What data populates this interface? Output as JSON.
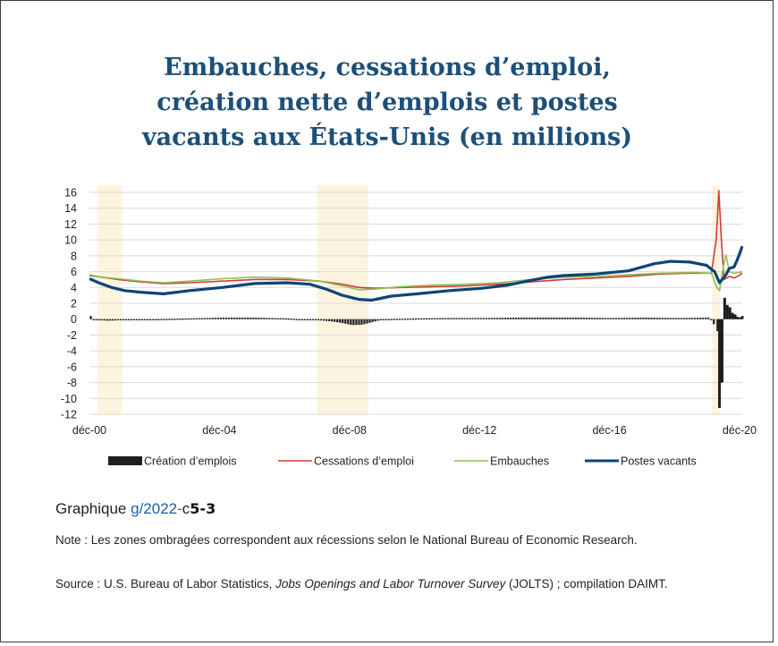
{
  "title_lines": [
    "Embauches, cessations d’emploi,",
    "création nette d’emplois et postes",
    "vacants aux États-Unis (en millions)"
  ],
  "caption": {
    "prefix": "Graphique ",
    "link": "g/2022-",
    "mid": "c",
    "strong": "5-3"
  },
  "note": "Note : Les zones ombragées correspondent aux récessions selon le National Bureau of Economic Research.",
  "source": {
    "prefix": "Source : U.S. Bureau of Labor Statistics, ",
    "italic": "Jobs Openings and Labor Turnover Survey",
    "suffix": " (JOLTS) ; compilation DAIMT."
  },
  "colors": {
    "title": "#1d4f79",
    "creation": "#1e1e1e",
    "cessations": "#d03a3a",
    "embauches": "#8cc152",
    "postes": "#0d4477",
    "recession": "#fdf4df",
    "grid": "#d9d9d9"
  },
  "chart_data": {
    "type": "line",
    "title": "",
    "xlabel": "",
    "ylabel": "",
    "ylim": [
      -12,
      16
    ],
    "yticks": [
      "16",
      "14",
      "12",
      "10",
      "8",
      "6",
      "4",
      "2",
      "0",
      "-2",
      "-4",
      "-6",
      "-8",
      "-10",
      "-12"
    ],
    "xticks": [
      {
        "label": "déc-00",
        "year": 2000.917
      },
      {
        "label": "déc-04",
        "year": 2004.917
      },
      {
        "label": "déc-08",
        "year": 2008.917
      },
      {
        "label": "déc-12",
        "year": 2012.917
      },
      {
        "label": "déc-16",
        "year": 2016.917
      },
      {
        "label": "déc-20",
        "year": 2020.917
      }
    ],
    "xlim": [
      2000.917,
      2021.0
    ],
    "grid": true,
    "legend": "bottom",
    "recessions": [
      [
        2001.17,
        2001.92
      ],
      [
        2007.92,
        2009.5
      ],
      [
        2020.08,
        2020.33
      ]
    ],
    "series": [
      {
        "name": "Création d’emplois",
        "kind": "bar",
        "color": "#1e1e1e",
        "points": [
          [
            2001.0,
            -0.1
          ],
          [
            2001.5,
            -0.2
          ],
          [
            2002.0,
            -0.1
          ],
          [
            2003.0,
            0.0
          ],
          [
            2004.0,
            0.1
          ],
          [
            2005.0,
            0.2
          ],
          [
            2006.0,
            0.2
          ],
          [
            2007.0,
            0.1
          ],
          [
            2008.0,
            -0.15
          ],
          [
            2008.4,
            -0.3
          ],
          [
            2008.7,
            -0.5
          ],
          [
            2009.0,
            -0.75
          ],
          [
            2009.3,
            -0.7
          ],
          [
            2009.6,
            -0.4
          ],
          [
            2010.0,
            0.0
          ],
          [
            2011.0,
            0.1
          ],
          [
            2012.0,
            0.15
          ],
          [
            2013.0,
            0.15
          ],
          [
            2014.0,
            0.2
          ],
          [
            2015.0,
            0.2
          ],
          [
            2016.0,
            0.2
          ],
          [
            2017.0,
            0.15
          ],
          [
            2018.0,
            0.2
          ],
          [
            2019.0,
            0.15
          ],
          [
            2020.0,
            0.2
          ],
          [
            2020.25,
            -1.5
          ],
          [
            2020.3,
            -11.2
          ],
          [
            2020.38,
            -8.0
          ],
          [
            2020.46,
            2.7
          ],
          [
            2020.54,
            1.8
          ],
          [
            2020.62,
            1.5
          ],
          [
            2020.7,
            0.8
          ],
          [
            2020.78,
            0.6
          ],
          [
            2020.86,
            0.3
          ],
          [
            2020.94,
            0.2
          ],
          [
            2021.0,
            0.4
          ]
        ]
      },
      {
        "name": "Cessations d’emploi",
        "kind": "line",
        "color": "#d03a3a",
        "points": [
          [
            2000.92,
            5.5
          ],
          [
            2001.3,
            5.3
          ],
          [
            2001.8,
            5.0
          ],
          [
            2002.5,
            4.7
          ],
          [
            2003.2,
            4.5
          ],
          [
            2004.0,
            4.6
          ],
          [
            2005.0,
            4.8
          ],
          [
            2006.0,
            5.0
          ],
          [
            2007.0,
            5.0
          ],
          [
            2008.0,
            4.8
          ],
          [
            2008.7,
            4.4
          ],
          [
            2009.2,
            4.0
          ],
          [
            2009.7,
            3.9
          ],
          [
            2010.5,
            4.0
          ],
          [
            2011.5,
            4.1
          ],
          [
            2012.5,
            4.2
          ],
          [
            2013.5,
            4.4
          ],
          [
            2014.5,
            4.7
          ],
          [
            2015.5,
            5.0
          ],
          [
            2016.5,
            5.2
          ],
          [
            2017.5,
            5.4
          ],
          [
            2018.5,
            5.7
          ],
          [
            2019.5,
            5.8
          ],
          [
            2020.05,
            5.8
          ],
          [
            2020.2,
            10.0
          ],
          [
            2020.28,
            16.2
          ],
          [
            2020.36,
            10.0
          ],
          [
            2020.44,
            5.0
          ],
          [
            2020.6,
            5.4
          ],
          [
            2020.75,
            5.2
          ],
          [
            2020.9,
            5.5
          ],
          [
            2021.0,
            5.8
          ]
        ]
      },
      {
        "name": "Embauches",
        "kind": "line",
        "color": "#8cc152",
        "points": [
          [
            2000.92,
            5.6
          ],
          [
            2001.3,
            5.3
          ],
          [
            2001.8,
            5.1
          ],
          [
            2002.5,
            4.8
          ],
          [
            2003.2,
            4.6
          ],
          [
            2004.0,
            4.8
          ],
          [
            2005.0,
            5.1
          ],
          [
            2006.0,
            5.3
          ],
          [
            2007.0,
            5.2
          ],
          [
            2008.0,
            4.8
          ],
          [
            2008.7,
            4.2
          ],
          [
            2009.2,
            3.7
          ],
          [
            2009.7,
            3.8
          ],
          [
            2010.5,
            4.1
          ],
          [
            2011.5,
            4.3
          ],
          [
            2012.5,
            4.4
          ],
          [
            2013.5,
            4.6
          ],
          [
            2014.5,
            5.0
          ],
          [
            2015.5,
            5.3
          ],
          [
            2016.5,
            5.4
          ],
          [
            2017.5,
            5.6
          ],
          [
            2018.5,
            5.8
          ],
          [
            2019.5,
            5.9
          ],
          [
            2020.05,
            5.8
          ],
          [
            2020.22,
            4.0
          ],
          [
            2020.3,
            3.6
          ],
          [
            2020.42,
            6.7
          ],
          [
            2020.5,
            8.1
          ],
          [
            2020.6,
            6.0
          ],
          [
            2020.75,
            5.8
          ],
          [
            2020.9,
            5.9
          ],
          [
            2021.0,
            6.0
          ]
        ]
      },
      {
        "name": "Postes vacants",
        "kind": "line",
        "color": "#0d4477",
        "points": [
          [
            2000.92,
            5.1
          ],
          [
            2001.2,
            4.6
          ],
          [
            2001.6,
            4.0
          ],
          [
            2002.0,
            3.6
          ],
          [
            2002.5,
            3.4
          ],
          [
            2003.2,
            3.2
          ],
          [
            2004.0,
            3.6
          ],
          [
            2005.0,
            4.0
          ],
          [
            2006.0,
            4.5
          ],
          [
            2007.0,
            4.6
          ],
          [
            2007.7,
            4.4
          ],
          [
            2008.2,
            3.8
          ],
          [
            2008.7,
            3.0
          ],
          [
            2009.2,
            2.5
          ],
          [
            2009.6,
            2.4
          ],
          [
            2010.2,
            2.9
          ],
          [
            2011.0,
            3.2
          ],
          [
            2012.0,
            3.6
          ],
          [
            2013.0,
            3.9
          ],
          [
            2013.8,
            4.3
          ],
          [
            2014.5,
            4.9
          ],
          [
            2015.0,
            5.3
          ],
          [
            2015.5,
            5.5
          ],
          [
            2016.5,
            5.7
          ],
          [
            2017.5,
            6.1
          ],
          [
            2018.3,
            7.0
          ],
          [
            2018.8,
            7.3
          ],
          [
            2019.4,
            7.2
          ],
          [
            2019.9,
            6.8
          ],
          [
            2020.15,
            6.0
          ],
          [
            2020.3,
            4.6
          ],
          [
            2020.5,
            5.6
          ],
          [
            2020.6,
            6.4
          ],
          [
            2020.75,
            6.6
          ],
          [
            2020.85,
            7.5
          ],
          [
            2020.95,
            8.6
          ],
          [
            2021.0,
            9.2
          ]
        ]
      }
    ]
  }
}
